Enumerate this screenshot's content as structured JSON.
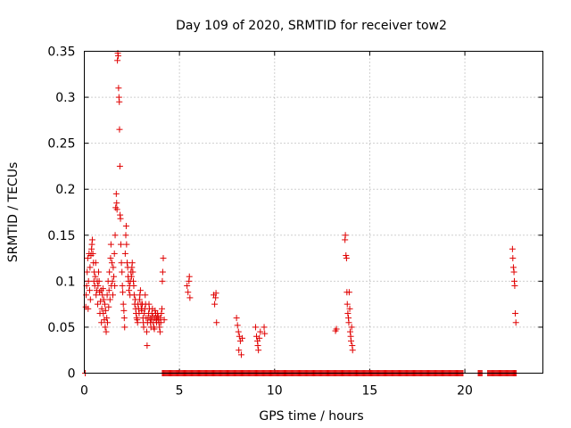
{
  "chart_data": {
    "type": "scatter",
    "title": "Day 109 of 2020, SRMTID for receiver tow2",
    "xlabel": "GPS time / hours",
    "ylabel": "SRMTID / TECUs",
    "xlim": [
      0,
      24.1
    ],
    "ylim": [
      0,
      0.35
    ],
    "xticks": [
      0,
      5,
      10,
      15,
      20
    ],
    "xtick_labels": [
      "0",
      "5",
      "10",
      "15",
      "20"
    ],
    "yticks": [
      0,
      0.05,
      0.1,
      0.15,
      0.2,
      0.25,
      0.3,
      0.35
    ],
    "ytick_labels": [
      "0",
      "0.05",
      "0.1",
      "0.15",
      "0.2",
      "0.25",
      "0.3",
      "0.35"
    ],
    "grid": true,
    "marker": "+",
    "color": "#e00000",
    "series": [
      {
        "name": "SRMTID",
        "points": [
          [
            0.05,
            0.0
          ],
          [
            0.08,
            0.072
          ],
          [
            0.1,
            0.085
          ],
          [
            0.12,
            0.095
          ],
          [
            0.15,
            0.11
          ],
          [
            0.18,
            0.125
          ],
          [
            0.2,
            0.07
          ],
          [
            0.22,
            0.1
          ],
          [
            0.25,
            0.13
          ],
          [
            0.28,
            0.09
          ],
          [
            0.3,
            0.115
          ],
          [
            0.32,
            0.08
          ],
          [
            0.35,
            0.128
          ],
          [
            0.38,
            0.135
          ],
          [
            0.4,
            0.14
          ],
          [
            0.42,
            0.145
          ],
          [
            0.45,
            0.13
          ],
          [
            0.48,
            0.12
          ],
          [
            0.5,
            0.1
          ],
          [
            0.52,
            0.11
          ],
          [
            0.55,
            0.095
          ],
          [
            0.58,
            0.105
          ],
          [
            0.6,
            0.12
          ],
          [
            0.62,
            0.085
          ],
          [
            0.65,
            0.09
          ],
          [
            0.68,
            0.1
          ],
          [
            0.7,
            0.075
          ],
          [
            0.72,
            0.095
          ],
          [
            0.75,
            0.11
          ],
          [
            0.78,
            0.1
          ],
          [
            0.8,
            0.088
          ],
          [
            0.82,
            0.065
          ],
          [
            0.85,
            0.078
          ],
          [
            0.88,
            0.09
          ],
          [
            0.9,
            0.055
          ],
          [
            0.92,
            0.07
          ],
          [
            0.95,
            0.085
          ],
          [
            0.98,
            0.092
          ],
          [
            1.0,
            0.065
          ],
          [
            1.02,
            0.08
          ],
          [
            1.05,
            0.058
          ],
          [
            1.08,
            0.075
          ],
          [
            1.1,
            0.05
          ],
          [
            1.12,
            0.068
          ],
          [
            1.15,
            0.045
          ],
          [
            1.18,
            0.06
          ],
          [
            1.2,
            0.085
          ],
          [
            1.22,
            0.055
          ],
          [
            1.25,
            0.1
          ],
          [
            1.28,
            0.072
          ],
          [
            1.3,
            0.09
          ],
          [
            1.32,
            0.11
          ],
          [
            1.35,
            0.08
          ],
          [
            1.38,
            0.125
          ],
          [
            1.4,
            0.14
          ],
          [
            1.42,
            0.095
          ],
          [
            1.45,
            0.12
          ],
          [
            1.48,
            0.1
          ],
          [
            1.5,
            0.085
          ],
          [
            1.52,
            0.115
          ],
          [
            1.55,
            0.105
          ],
          [
            1.58,
            0.13
          ],
          [
            1.6,
            0.095
          ],
          [
            1.62,
            0.15
          ],
          [
            1.65,
            0.18
          ],
          [
            1.68,
            0.195
          ],
          [
            1.7,
            0.185
          ],
          [
            1.72,
            0.178
          ],
          [
            1.74,
            0.34
          ],
          [
            1.76,
            0.348
          ],
          [
            1.78,
            0.345
          ],
          [
            1.8,
            0.31
          ],
          [
            1.82,
            0.3
          ],
          [
            1.84,
            0.295
          ],
          [
            1.85,
            0.265
          ],
          [
            1.87,
            0.225
          ],
          [
            1.88,
            0.172
          ],
          [
            1.9,
            0.168
          ],
          [
            1.92,
            0.14
          ],
          [
            1.95,
            0.12
          ],
          [
            1.98,
            0.11
          ],
          [
            2.0,
            0.095
          ],
          [
            2.02,
            0.088
          ],
          [
            2.05,
            0.075
          ],
          [
            2.08,
            0.068
          ],
          [
            2.1,
            0.06
          ],
          [
            2.12,
            0.05
          ],
          [
            2.15,
            0.13
          ],
          [
            2.18,
            0.15
          ],
          [
            2.2,
            0.16
          ],
          [
            2.22,
            0.14
          ],
          [
            2.25,
            0.12
          ],
          [
            2.28,
            0.115
          ],
          [
            2.3,
            0.105
          ],
          [
            2.32,
            0.1
          ],
          [
            2.35,
            0.09
          ],
          [
            2.38,
            0.095
          ],
          [
            2.4,
            0.085
          ],
          [
            2.42,
            0.1
          ],
          [
            2.45,
            0.11
          ],
          [
            2.48,
            0.105
          ],
          [
            2.5,
            0.115
          ],
          [
            2.52,
            0.12
          ],
          [
            2.55,
            0.11
          ],
          [
            2.58,
            0.1
          ],
          [
            2.6,
            0.095
          ],
          [
            2.62,
            0.085
          ],
          [
            2.65,
            0.075
          ],
          [
            2.68,
            0.08
          ],
          [
            2.7,
            0.07
          ],
          [
            2.72,
            0.065
          ],
          [
            2.75,
            0.06
          ],
          [
            2.78,
            0.058
          ],
          [
            2.8,
            0.055
          ],
          [
            2.82,
            0.075
          ],
          [
            2.85,
            0.07
          ],
          [
            2.88,
            0.065
          ],
          [
            2.9,
            0.08
          ],
          [
            2.92,
            0.085
          ],
          [
            2.95,
            0.09
          ],
          [
            2.98,
            0.075
          ],
          [
            3.0,
            0.07
          ],
          [
            3.02,
            0.068
          ],
          [
            3.05,
            0.075
          ],
          [
            3.08,
            0.06
          ],
          [
            3.1,
            0.055
          ],
          [
            3.12,
            0.05
          ],
          [
            3.15,
            0.065
          ],
          [
            3.18,
            0.07
          ],
          [
            3.2,
            0.085
          ],
          [
            3.22,
            0.075
          ],
          [
            3.25,
            0.06
          ],
          [
            3.28,
            0.045
          ],
          [
            3.3,
            0.03
          ],
          [
            3.32,
            0.055
          ],
          [
            3.35,
            0.06
          ],
          [
            3.38,
            0.065
          ],
          [
            3.4,
            0.075
          ],
          [
            3.42,
            0.07
          ],
          [
            3.45,
            0.06
          ],
          [
            3.48,
            0.055
          ],
          [
            3.5,
            0.05
          ],
          [
            3.52,
            0.058
          ],
          [
            3.55,
            0.065
          ],
          [
            3.58,
            0.07
          ],
          [
            3.6,
            0.062
          ],
          [
            3.62,
            0.055
          ],
          [
            3.65,
            0.05
          ],
          [
            3.68,
            0.048
          ],
          [
            3.7,
            0.06
          ],
          [
            3.72,
            0.068
          ],
          [
            3.75,
            0.065
          ],
          [
            3.78,
            0.058
          ],
          [
            3.8,
            0.055
          ],
          [
            3.82,
            0.06
          ],
          [
            3.85,
            0.065
          ],
          [
            3.88,
            0.062
          ],
          [
            3.9,
            0.058
          ],
          [
            3.92,
            0.055
          ],
          [
            3.95,
            0.05
          ],
          [
            3.98,
            0.045
          ],
          [
            4.0,
            0.06
          ],
          [
            4.02,
            0.055
          ],
          [
            4.05,
            0.065
          ],
          [
            4.08,
            0.07
          ],
          [
            4.1,
            0.1
          ],
          [
            4.12,
            0.11
          ],
          [
            4.15,
            0.125
          ],
          [
            4.2,
            0.058
          ],
          [
            5.4,
            0.095
          ],
          [
            5.45,
            0.088
          ],
          [
            5.5,
            0.1
          ],
          [
            5.52,
            0.105
          ],
          [
            5.55,
            0.082
          ],
          [
            6.8,
            0.085
          ],
          [
            6.85,
            0.075
          ],
          [
            6.9,
            0.082
          ],
          [
            6.92,
            0.087
          ],
          [
            6.95,
            0.055
          ],
          [
            8.0,
            0.06
          ],
          [
            8.05,
            0.052
          ],
          [
            8.1,
            0.045
          ],
          [
            8.12,
            0.025
          ],
          [
            8.15,
            0.04
          ],
          [
            8.2,
            0.035
          ],
          [
            8.25,
            0.02
          ],
          [
            8.3,
            0.038
          ],
          [
            9.0,
            0.05
          ],
          [
            9.05,
            0.04
          ],
          [
            9.1,
            0.035
          ],
          [
            9.12,
            0.03
          ],
          [
            9.15,
            0.025
          ],
          [
            9.2,
            0.038
          ],
          [
            9.25,
            0.045
          ],
          [
            9.45,
            0.05
          ],
          [
            9.48,
            0.043
          ],
          [
            13.2,
            0.046
          ],
          [
            13.25,
            0.048
          ],
          [
            13.7,
            0.145
          ],
          [
            13.72,
            0.15
          ],
          [
            13.75,
            0.128
          ],
          [
            13.78,
            0.125
          ],
          [
            13.8,
            0.088
          ],
          [
            13.82,
            0.075
          ],
          [
            13.85,
            0.065
          ],
          [
            13.88,
            0.06
          ],
          [
            13.9,
            0.055
          ],
          [
            13.92,
            0.088
          ],
          [
            13.95,
            0.07
          ],
          [
            13.97,
            0.045
          ],
          [
            14.0,
            0.04
          ],
          [
            14.02,
            0.035
          ],
          [
            14.05,
            0.05
          ],
          [
            14.08,
            0.03
          ],
          [
            14.1,
            0.025
          ],
          [
            22.5,
            0.135
          ],
          [
            22.52,
            0.125
          ],
          [
            22.55,
            0.115
          ],
          [
            22.58,
            0.11
          ],
          [
            22.6,
            0.1
          ],
          [
            22.62,
            0.095
          ],
          [
            22.65,
            0.065
          ],
          [
            22.68,
            0.055
          ]
        ],
        "zero_runs": [
          [
            4.1,
            19.9
          ],
          [
            20.7,
            20.9
          ],
          [
            21.2,
            22.7
          ]
        ]
      }
    ]
  }
}
